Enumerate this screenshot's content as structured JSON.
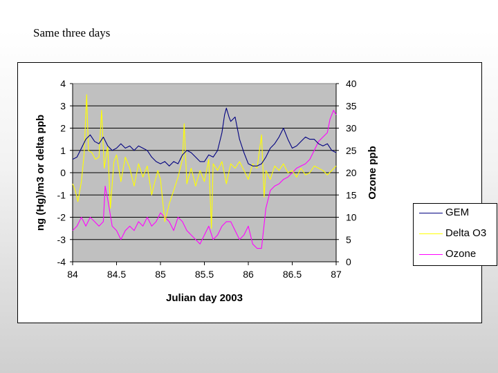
{
  "slide": {
    "title": "Same three days"
  },
  "chart_data": {
    "type": "line",
    "title": "",
    "xlabel": "Julian day 2003",
    "ylabel": "ng (Hg)/m3 or  delta ppb",
    "y2label": "Ozone ppb",
    "xlim": [
      84,
      87
    ],
    "ylim": [
      -4,
      4
    ],
    "y2lim": [
      0,
      40
    ],
    "x_ticks": [
      "84",
      "84.5",
      "85",
      "85.5",
      "86",
      "86.5",
      "87"
    ],
    "y_ticks": [
      "-4",
      "-3",
      "-2",
      "-1",
      "0",
      "1",
      "2",
      "3",
      "4"
    ],
    "y2_ticks": [
      "0",
      "5",
      "10",
      "15",
      "20",
      "25",
      "30",
      "35",
      "40"
    ],
    "grid": true,
    "plot_background": "#c0c0c0",
    "legend_position": "right",
    "series": [
      {
        "name": "GEM",
        "axis": "left",
        "color": "#000080",
        "x": [
          84.0,
          84.05,
          84.1,
          84.15,
          84.2,
          84.25,
          84.3,
          84.35,
          84.4,
          84.45,
          84.5,
          84.55,
          84.6,
          84.65,
          84.7,
          84.75,
          84.8,
          84.85,
          84.9,
          84.95,
          85.0,
          85.05,
          85.1,
          85.15,
          85.2,
          85.25,
          85.3,
          85.35,
          85.4,
          85.45,
          85.5,
          85.55,
          85.6,
          85.65,
          85.7,
          85.73,
          85.75,
          85.78,
          85.8,
          85.85,
          85.9,
          85.95,
          86.0,
          86.05,
          86.1,
          86.15,
          86.2,
          86.25,
          86.3,
          86.35,
          86.4,
          86.45,
          86.5,
          86.55,
          86.6,
          86.65,
          86.7,
          86.75,
          86.8,
          86.85,
          86.9,
          86.95,
          87.0
        ],
        "values": [
          0.6,
          0.7,
          1.1,
          1.5,
          1.7,
          1.4,
          1.3,
          1.6,
          1.2,
          1.0,
          1.1,
          1.3,
          1.1,
          1.2,
          1.0,
          1.2,
          1.1,
          1.0,
          0.7,
          0.5,
          0.4,
          0.5,
          0.3,
          0.5,
          0.4,
          0.8,
          1.0,
          0.9,
          0.7,
          0.5,
          0.5,
          0.8,
          0.7,
          1.0,
          1.8,
          2.6,
          2.9,
          2.5,
          2.3,
          2.5,
          1.5,
          0.9,
          0.4,
          0.3,
          0.3,
          0.4,
          0.7,
          1.1,
          1.3,
          1.6,
          2.0,
          1.5,
          1.1,
          1.2,
          1.4,
          1.6,
          1.5,
          1.5,
          1.3,
          1.2,
          1.3,
          1.0,
          0.9
        ]
      },
      {
        "name": "Delta O3",
        "axis": "left",
        "color": "#ffff00",
        "x": [
          84.0,
          84.03,
          84.06,
          84.1,
          84.13,
          84.16,
          84.18,
          84.22,
          84.26,
          84.3,
          84.33,
          84.36,
          84.4,
          84.43,
          84.47,
          84.5,
          84.55,
          84.6,
          84.65,
          84.7,
          84.75,
          84.8,
          84.85,
          84.9,
          84.93,
          84.97,
          85.0,
          85.05,
          85.1,
          85.15,
          85.2,
          85.25,
          85.27,
          85.3,
          85.35,
          85.4,
          85.45,
          85.5,
          85.55,
          85.58,
          85.6,
          85.65,
          85.7,
          85.75,
          85.8,
          85.85,
          85.9,
          85.95,
          86.0,
          86.05,
          86.1,
          86.15,
          86.18,
          86.2,
          86.25,
          86.3,
          86.35,
          86.4,
          86.45,
          86.5,
          86.55,
          86.6,
          86.65,
          86.7,
          86.75,
          86.8,
          86.85,
          86.9,
          86.95,
          87.0
        ],
        "values": [
          -0.5,
          -0.8,
          -1.3,
          -0.4,
          0.8,
          3.5,
          1.0,
          0.9,
          0.6,
          0.7,
          2.8,
          0.2,
          1.2,
          -1.6,
          0.5,
          0.8,
          -0.4,
          0.7,
          0.2,
          -0.6,
          0.4,
          -0.2,
          0.3,
          -1.0,
          -0.5,
          0.1,
          -0.3,
          -2.2,
          -1.4,
          -0.8,
          -0.2,
          0.6,
          2.2,
          -0.5,
          0.2,
          -0.6,
          0.1,
          -0.4,
          0.6,
          -2.5,
          0.4,
          0.1,
          0.5,
          -0.5,
          0.4,
          0.2,
          0.5,
          0.1,
          -0.3,
          0.4,
          0.2,
          1.7,
          -1.1,
          0.1,
          -0.3,
          0.3,
          0.1,
          0.4,
          0.0,
          0.1,
          -0.2,
          0.2,
          -0.1,
          0.0,
          0.3,
          0.2,
          0.1,
          -0.1,
          0.1,
          0.3
        ]
      },
      {
        "name": "Ozone",
        "axis": "right",
        "color": "#ff00ff",
        "x": [
          84.0,
          84.05,
          84.1,
          84.15,
          84.2,
          84.25,
          84.3,
          84.35,
          84.37,
          84.4,
          84.45,
          84.5,
          84.55,
          84.6,
          84.65,
          84.7,
          84.75,
          84.8,
          84.85,
          84.9,
          84.95,
          85.0,
          85.05,
          85.1,
          85.15,
          85.2,
          85.25,
          85.3,
          85.35,
          85.4,
          85.45,
          85.5,
          85.55,
          85.6,
          85.65,
          85.7,
          85.75,
          85.8,
          85.85,
          85.9,
          85.95,
          86.0,
          86.05,
          86.1,
          86.15,
          86.2,
          86.25,
          86.3,
          86.35,
          86.4,
          86.45,
          86.5,
          86.55,
          86.6,
          86.65,
          86.7,
          86.75,
          86.8,
          86.85,
          86.9,
          86.93,
          86.95,
          86.97,
          87.0
        ],
        "values": [
          7,
          8,
          10,
          8,
          10,
          9,
          8,
          9,
          17,
          14,
          8,
          7,
          5,
          7,
          8,
          7,
          9,
          8,
          10,
          8,
          9,
          11,
          10,
          9,
          7,
          10,
          9,
          7,
          6,
          5,
          4,
          6,
          8,
          5,
          6,
          8,
          9,
          9,
          7,
          5,
          6,
          8,
          4,
          3,
          3,
          12,
          16,
          17,
          17.5,
          18.5,
          19,
          20,
          21,
          21.5,
          22,
          23,
          25,
          27,
          28,
          29,
          32,
          33,
          34,
          33
        ]
      }
    ]
  }
}
